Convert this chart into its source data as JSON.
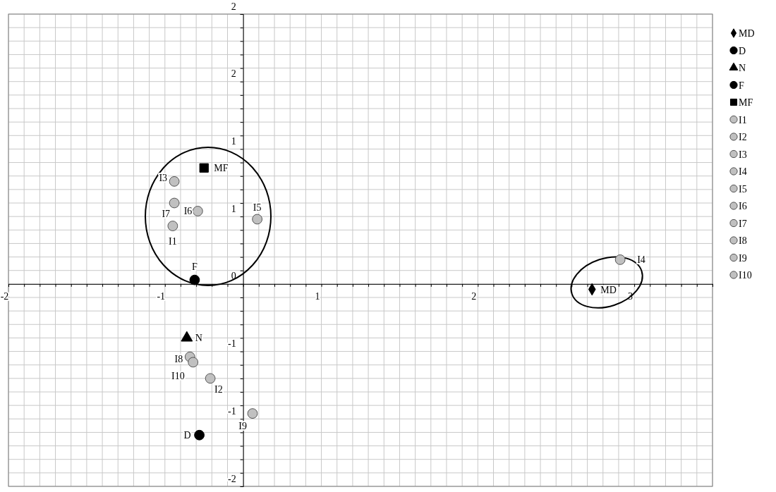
{
  "chart_data": {
    "type": "scatter",
    "xlim": [
      -1.5,
      3.0
    ],
    "ylim": [
      -1.5,
      2.0
    ],
    "xticks": [
      {
        "value": -1.5,
        "label": "-2"
      },
      {
        "value": -1.4,
        "label": null
      },
      {
        "value": -1.3,
        "label": null
      },
      {
        "value": -1.2,
        "label": null
      },
      {
        "value": -1.1,
        "label": null
      },
      {
        "value": -1.0,
        "label": null
      },
      {
        "value": -0.9,
        "label": null
      },
      {
        "value": -0.8,
        "label": null
      },
      {
        "value": -0.7,
        "label": null
      },
      {
        "value": -0.6,
        "label": null
      },
      {
        "value": -0.5,
        "label": "-1"
      },
      {
        "value": -0.4,
        "label": null
      },
      {
        "value": -0.3,
        "label": null
      },
      {
        "value": -0.2,
        "label": null
      },
      {
        "value": -0.1,
        "label": null
      },
      {
        "value": 0,
        "label": null
      },
      {
        "value": 0.1,
        "label": null
      },
      {
        "value": 0.2,
        "label": null
      },
      {
        "value": 0.3,
        "label": null
      },
      {
        "value": 0.4,
        "label": null
      },
      {
        "value": 0.5,
        "label": "1"
      },
      {
        "value": 0.6,
        "label": null
      },
      {
        "value": 0.7,
        "label": null
      },
      {
        "value": 0.8,
        "label": null
      },
      {
        "value": 0.9,
        "label": null
      },
      {
        "value": 1.0,
        "label": null
      },
      {
        "value": 1.1,
        "label": null
      },
      {
        "value": 1.2,
        "label": null
      },
      {
        "value": 1.3,
        "label": null
      },
      {
        "value": 1.4,
        "label": null
      },
      {
        "value": 1.5,
        "label": "2"
      },
      {
        "value": 1.6,
        "label": null
      },
      {
        "value": 1.7,
        "label": null
      },
      {
        "value": 1.8,
        "label": null
      },
      {
        "value": 1.9,
        "label": null
      },
      {
        "value": 2.0,
        "label": null
      },
      {
        "value": 2.1,
        "label": null
      },
      {
        "value": 2.2,
        "label": null
      },
      {
        "value": 2.3,
        "label": null
      },
      {
        "value": 2.4,
        "label": null
      },
      {
        "value": 2.5,
        "label": "3"
      },
      {
        "value": 2.6,
        "label": null
      },
      {
        "value": 2.7,
        "label": null
      },
      {
        "value": 2.8,
        "label": null
      },
      {
        "value": 2.9,
        "label": null
      },
      {
        "value": 3.0,
        "label": null
      }
    ],
    "yticks": [
      {
        "value": -1.5,
        "label": "-2"
      },
      {
        "value": -1.4,
        "label": null
      },
      {
        "value": -1.3,
        "label": null
      },
      {
        "value": -1.2,
        "label": null
      },
      {
        "value": -1.1,
        "label": null
      },
      {
        "value": -1.0,
        "label": "-1"
      },
      {
        "value": -0.9,
        "label": null
      },
      {
        "value": -0.8,
        "label": null
      },
      {
        "value": -0.7,
        "label": null
      },
      {
        "value": -0.6,
        "label": null
      },
      {
        "value": -0.5,
        "label": "-1"
      },
      {
        "value": -0.4,
        "label": null
      },
      {
        "value": -0.3,
        "label": null
      },
      {
        "value": -0.2,
        "label": null
      },
      {
        "value": -0.1,
        "label": null
      },
      {
        "value": 0,
        "label": "0"
      },
      {
        "value": 0.1,
        "label": null
      },
      {
        "value": 0.2,
        "label": null
      },
      {
        "value": 0.3,
        "label": null
      },
      {
        "value": 0.4,
        "label": null
      },
      {
        "value": 0.5,
        "label": "1"
      },
      {
        "value": 0.6,
        "label": null
      },
      {
        "value": 0.7,
        "label": null
      },
      {
        "value": 0.8,
        "label": null
      },
      {
        "value": 0.9,
        "label": null
      },
      {
        "value": 1.0,
        "label": "1"
      },
      {
        "value": 1.1,
        "label": null
      },
      {
        "value": 1.2,
        "label": null
      },
      {
        "value": 1.3,
        "label": null
      },
      {
        "value": 1.4,
        "label": null
      },
      {
        "value": 1.5,
        "label": "2"
      },
      {
        "value": 1.6,
        "label": null
      },
      {
        "value": 1.7,
        "label": null
      },
      {
        "value": 1.8,
        "label": null
      },
      {
        "value": 1.9,
        "label": null
      },
      {
        "value": 2.0,
        "label": "2"
      }
    ],
    "grid": true,
    "legend": "right",
    "series": [
      {
        "name": "MD",
        "color": "#000000",
        "marker": "diamond",
        "x": [
          2.23
        ],
        "values": [
          -0.04
        ]
      },
      {
        "name": "D",
        "color": "#000000",
        "marker": "circle",
        "x": [
          -0.28
        ],
        "values": [
          -1.12
        ]
      },
      {
        "name": "N",
        "color": "#000000",
        "marker": "triangle",
        "x": [
          -0.36
        ],
        "values": [
          -0.4
        ]
      },
      {
        "name": "F",
        "color": "#000000",
        "marker": "circle",
        "x": [
          -0.31
        ],
        "values": [
          0.03
        ]
      },
      {
        "name": "MF",
        "color": "#000000",
        "marker": "square",
        "x": [
          -0.25
        ],
        "values": [
          0.86
        ]
      },
      {
        "name": "I1",
        "color": "#c0c0c0",
        "marker": "circle",
        "x": [
          -0.45
        ],
        "values": [
          0.43
        ]
      },
      {
        "name": "I2",
        "color": "#c0c0c0",
        "marker": "circle",
        "x": [
          -0.21
        ],
        "values": [
          -0.7
        ]
      },
      {
        "name": "I3",
        "color": "#c0c0c0",
        "marker": "circle",
        "x": [
          -0.44
        ],
        "values": [
          0.76
        ]
      },
      {
        "name": "I4",
        "color": "#c0c0c0",
        "marker": "circle",
        "x": [
          2.41
        ],
        "values": [
          0.18
        ]
      },
      {
        "name": "I5",
        "color": "#c0c0c0",
        "marker": "circle",
        "x": [
          0.09
        ],
        "values": [
          0.48
        ]
      },
      {
        "name": "I6",
        "color": "#c0c0c0",
        "marker": "circle",
        "x": [
          -0.29
        ],
        "values": [
          0.54
        ]
      },
      {
        "name": "I7",
        "color": "#c0c0c0",
        "marker": "circle",
        "x": [
          -0.44
        ],
        "values": [
          0.6
        ]
      },
      {
        "name": "I8",
        "color": "#c0c0c0",
        "marker": "circle",
        "x": [
          -0.34
        ],
        "values": [
          -0.54
        ]
      },
      {
        "name": "I9",
        "color": "#c0c0c0",
        "marker": "circle",
        "x": [
          0.06
        ],
        "values": [
          -0.96
        ]
      },
      {
        "name": "I10",
        "color": "#c0c0c0",
        "marker": "circle",
        "x": [
          -0.32
        ],
        "values": [
          -0.58
        ]
      }
    ]
  }
}
